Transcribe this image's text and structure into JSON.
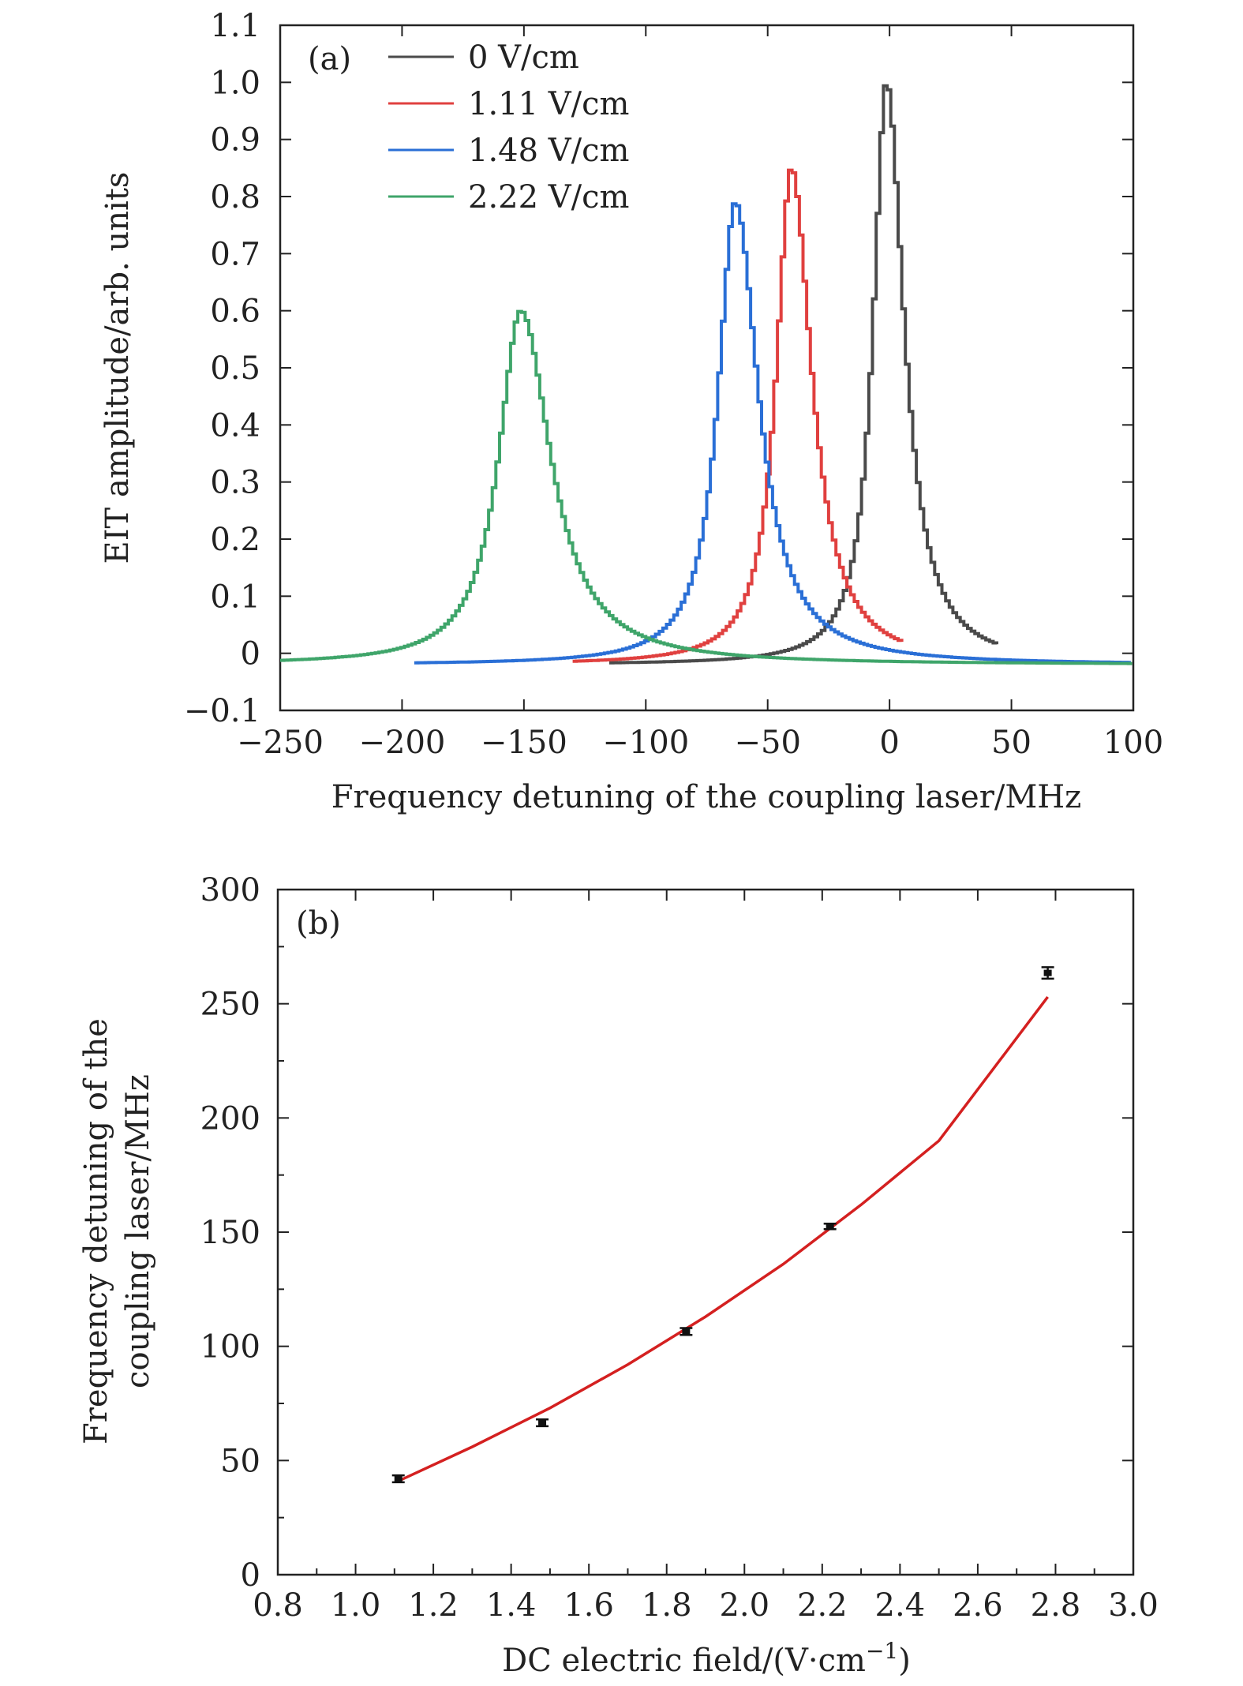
{
  "chart_data": [
    {
      "panel_label": "(a)",
      "type": "line",
      "xlabel": "Frequency detuning of the coupling laser/MHz",
      "ylabel": "EIT amplitude/arb. units",
      "xlim": [
        -250,
        100
      ],
      "ylim": [
        -0.1,
        1.1
      ],
      "xticks": [
        -250,
        -200,
        -150,
        -100,
        -50,
        0,
        50,
        100
      ],
      "xtick_labels": [
        "−250",
        "−200",
        "−150",
        "−100",
        "−50",
        "0",
        "50",
        "100"
      ],
      "yticks": [
        -0.1,
        0,
        0.1,
        0.2,
        0.3,
        0.4,
        0.5,
        0.6,
        0.7,
        0.8,
        0.9,
        1.0,
        1.1
      ],
      "ytick_labels": [
        "−0.1",
        "0",
        "0.1",
        "0.2",
        "0.3",
        "0.4",
        "0.5",
        "0.6",
        "0.7",
        "0.8",
        "0.9",
        "1.0",
        "1.1"
      ],
      "legend_position": "top-left",
      "grid": false,
      "series": [
        {
          "name": "0 V/cm",
          "color": "#4a4a4a",
          "center": -2,
          "peak": 1.0,
          "width": 6.5,
          "base": -0.02,
          "x_range": [
            -115,
            45
          ]
        },
        {
          "name": "1.11 V/cm",
          "color": "#e0403f",
          "center": -41,
          "peak": 0.85,
          "width": 7.5,
          "base": -0.02,
          "x_range": [
            -130,
            5
          ]
        },
        {
          "name": "1.48 V/cm",
          "color": "#2a6fd6",
          "center": -64,
          "peak": 0.79,
          "width": 8.5,
          "base": -0.02,
          "x_range": [
            -195,
            100
          ]
        },
        {
          "name": "2.22 V/cm",
          "color": "#3fa56a",
          "center": -152,
          "peak": 0.6,
          "width": 11,
          "base": -0.02,
          "x_range": [
            -250,
            100
          ]
        }
      ]
    },
    {
      "panel_label": "(b)",
      "type": "scatter",
      "xlabel": "DC electric field/(V·cm",
      "xlabel_sup": "−1",
      "xlabel_end": ")",
      "ylabel_line1": "Frequency detuning of the",
      "ylabel_line2": "coupling laser/MHz",
      "xlim": [
        0.8,
        3.0
      ],
      "ylim": [
        0,
        300
      ],
      "xticks": [
        0.8,
        1.0,
        1.2,
        1.4,
        1.6,
        1.8,
        2.0,
        2.2,
        2.4,
        2.6,
        2.8,
        3.0
      ],
      "xtick_labels": [
        "0.8",
        "1.0",
        "1.2",
        "1.4",
        "1.6",
        "1.8",
        "2.0",
        "2.2",
        "2.4",
        "2.6",
        "2.8",
        "3.0"
      ],
      "yticks": [
        0,
        50,
        100,
        150,
        200,
        250,
        300
      ],
      "ytick_labels": [
        "0",
        "50",
        "100",
        "150",
        "200",
        "250",
        "300"
      ],
      "points": [
        {
          "x": 1.11,
          "y": 42,
          "err": 1.5
        },
        {
          "x": 1.48,
          "y": 66.5,
          "err": 1.5
        },
        {
          "x": 1.85,
          "y": 106.5,
          "err": 1.5
        },
        {
          "x": 2.22,
          "y": 152.5,
          "err": 1.2
        },
        {
          "x": 2.78,
          "y": 263.5,
          "err": 2.5
        }
      ],
      "fit": {
        "color": "#d42020",
        "x": [
          1.11,
          1.3,
          1.5,
          1.7,
          1.9,
          2.1,
          2.3,
          2.5,
          2.78
        ],
        "y": [
          41,
          56,
          73,
          92,
          113,
          136,
          162,
          190,
          253
        ]
      },
      "marker_color": "#111111"
    }
  ]
}
